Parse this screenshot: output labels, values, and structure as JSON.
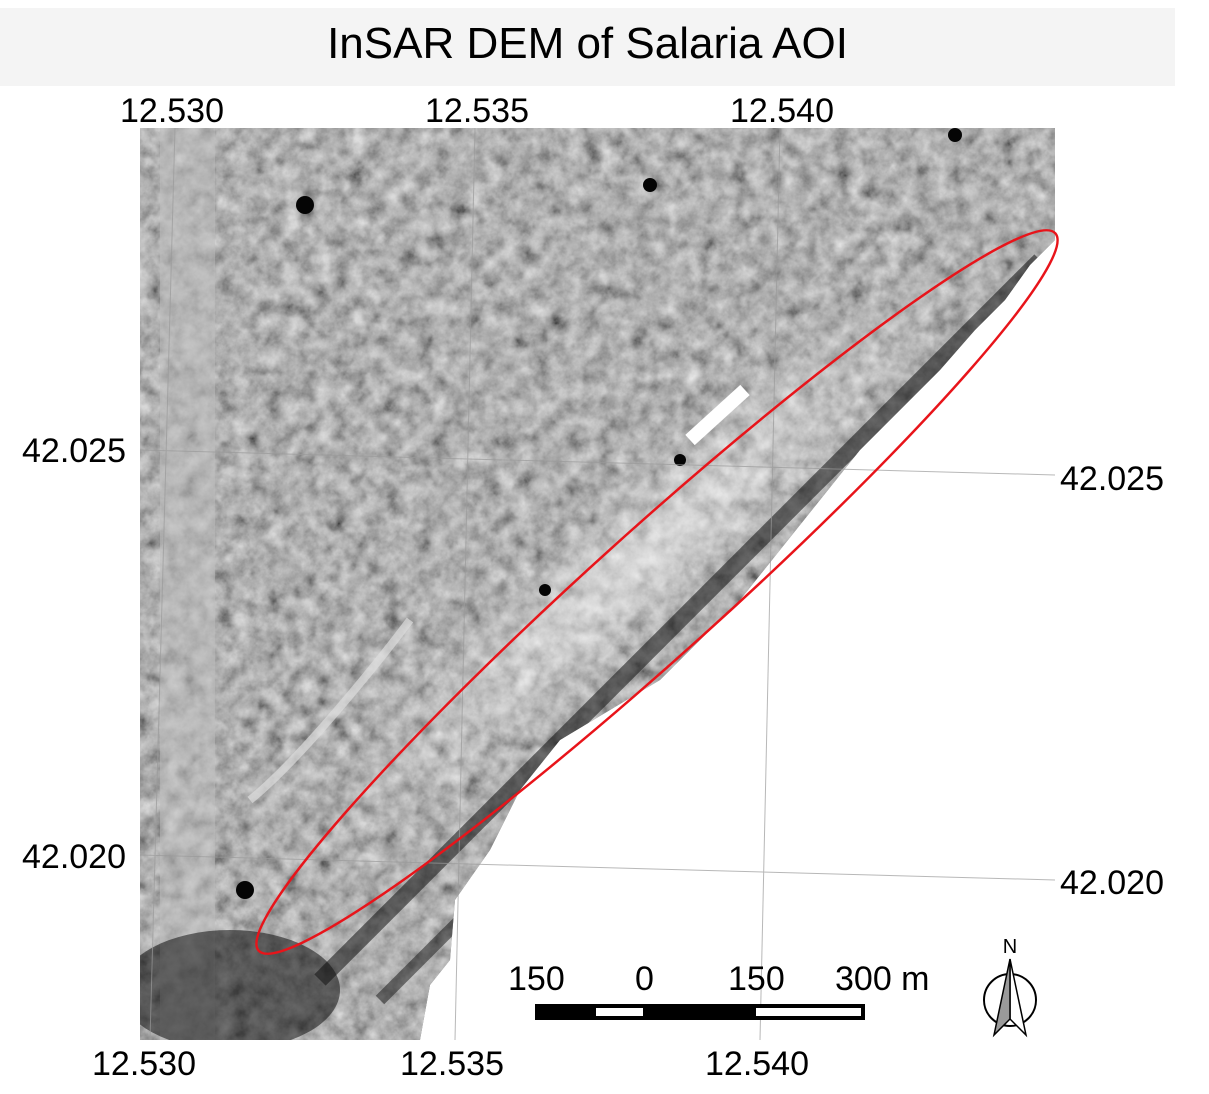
{
  "title": "InSAR DEM of Salaria AOI",
  "top_longitude_labels": [
    "12.530",
    "12.535",
    "12.540"
  ],
  "bottom_longitude_labels": [
    "12.530",
    "12.535",
    "12.540"
  ],
  "left_latitude_labels": [
    "42.025",
    "42.020"
  ],
  "right_latitude_labels": [
    "42.025",
    "42.020"
  ],
  "scale_bar": {
    "labels": [
      "150",
      "0",
      "150",
      "300 m"
    ]
  },
  "north_arrow": {
    "label": "N",
    "icon": "north-arrow-icon"
  },
  "aoi_outline": {
    "shape": "ellipse",
    "color": "#e8141a"
  },
  "dem_colormap": "grayscale"
}
